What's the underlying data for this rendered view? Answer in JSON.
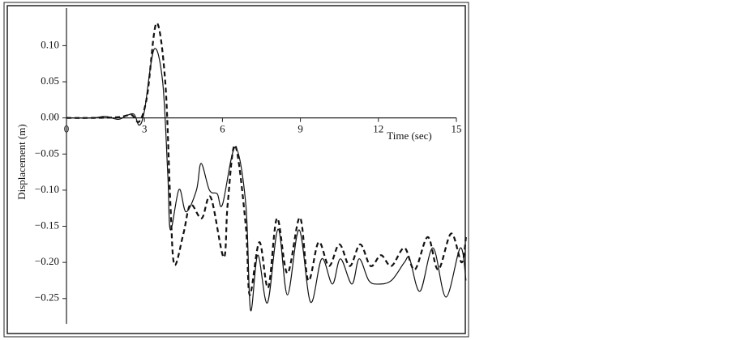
{
  "chart_data": {
    "type": "line",
    "x_label": "Time (sec)",
    "y_label": "Displacement (m)",
    "xlim": [
      0,
      15
    ],
    "xticks": [
      0,
      3,
      6,
      9,
      12,
      15
    ],
    "ylim": [
      -0.285,
      0.152
    ],
    "yticks": [
      {
        "value": 0.1,
        "label": "0.10"
      },
      {
        "value": 0.05,
        "label": "0.05"
      },
      {
        "value": 0,
        "label": "0.00"
      },
      {
        "value": -0.05,
        "label": "−0.05"
      },
      {
        "value": -0.1,
        "label": "−0.10"
      },
      {
        "value": -0.15,
        "label": "−0.15"
      },
      {
        "value": -0.2,
        "label": "−0.20"
      },
      {
        "value": -0.25,
        "label": "−0.25"
      }
    ],
    "series": [
      {
        "color": "#111111",
        "dashed": false,
        "x": [
          0,
          1,
          1.5,
          2,
          2.3,
          2.6,
          2.8,
          3.0,
          3.37,
          3.7,
          3.9,
          4.0,
          4.33,
          4.6,
          5.0,
          5.18,
          5.5,
          5.8,
          6.0,
          6.49,
          6.9,
          7.08,
          7.36,
          7.73,
          8.14,
          8.5,
          8.95,
          9.39,
          9.82,
          10.23,
          10.54,
          10.98,
          11.26,
          11.63,
          12.0,
          12.5,
          13.0,
          13.2,
          13.6,
          14.1,
          14.6,
          15.15,
          15.37
        ],
        "values": [
          0,
          0,
          0.002,
          -0.002,
          0.003,
          0.005,
          -0.01,
          0.01,
          0.095,
          0.05,
          -0.08,
          -0.155,
          -0.099,
          -0.13,
          -0.1,
          -0.063,
          -0.1,
          -0.105,
          -0.12,
          -0.041,
          -0.12,
          -0.266,
          -0.19,
          -0.256,
          -0.154,
          -0.245,
          -0.155,
          -0.255,
          -0.195,
          -0.23,
          -0.195,
          -0.23,
          -0.195,
          -0.225,
          -0.23,
          -0.225,
          -0.2,
          -0.195,
          -0.24,
          -0.18,
          -0.248,
          -0.18,
          -0.225
        ]
      },
      {
        "color": "#111111",
        "dashed": true,
        "x": [
          0,
          1,
          2,
          2.5,
          2.8,
          3.1,
          3.46,
          3.8,
          4.0,
          4.15,
          4.5,
          4.77,
          5.2,
          5.55,
          6.05,
          6.2,
          6.49,
          6.9,
          7.05,
          7.42,
          7.76,
          8.1,
          8.5,
          8.98,
          9.3,
          9.7,
          10.1,
          10.5,
          10.9,
          11.3,
          11.7,
          12.1,
          12.5,
          13.0,
          13.4,
          13.9,
          14.3,
          14.8,
          15.2,
          15.37
        ],
        "values": [
          0,
          0,
          0.001,
          0.004,
          -0.005,
          0.03,
          0.131,
          0.05,
          -0.12,
          -0.203,
          -0.16,
          -0.12,
          -0.139,
          -0.11,
          -0.193,
          -0.12,
          -0.038,
          -0.15,
          -0.245,
          -0.172,
          -0.235,
          -0.139,
          -0.215,
          -0.138,
          -0.225,
          -0.172,
          -0.205,
          -0.175,
          -0.205,
          -0.175,
          -0.205,
          -0.19,
          -0.205,
          -0.18,
          -0.21,
          -0.165,
          -0.21,
          -0.16,
          -0.2,
          -0.165
        ]
      }
    ]
  }
}
